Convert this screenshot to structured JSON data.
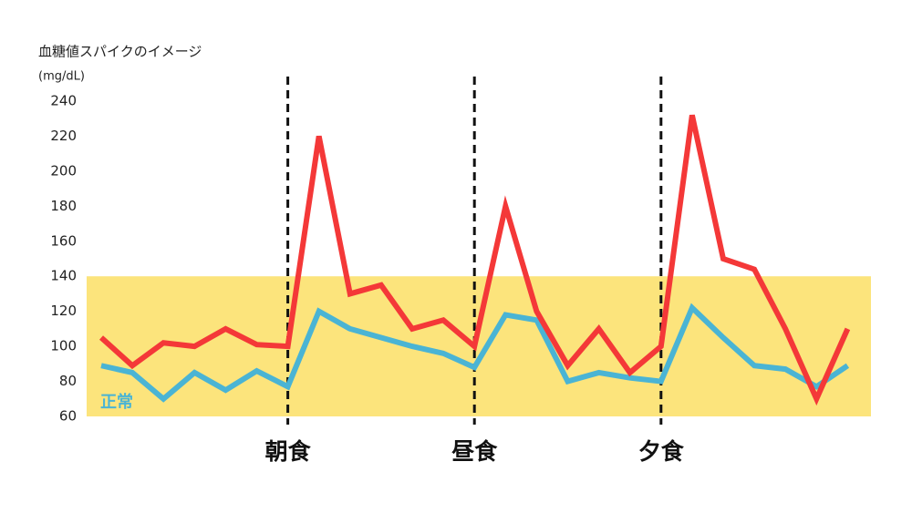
{
  "chart_data": {
    "type": "line",
    "title": "血糖値スパイクのイメージ",
    "y_label": "(mg/dL)",
    "categories": [
      null,
      null,
      null,
      null,
      null,
      null,
      "朝食",
      null,
      null,
      null,
      null,
      null,
      "昼食",
      null,
      null,
      null,
      null,
      null,
      "夕食",
      null,
      null,
      null,
      null,
      null,
      null
    ],
    "series": [
      {
        "color": "#f43838",
        "values": [
          105,
          89,
          102,
          100,
          110,
          101,
          100,
          220,
          130,
          135,
          110,
          115,
          100,
          180,
          120,
          89,
          110,
          85,
          100,
          232,
          150,
          144,
          110,
          70,
          110
        ]
      },
      {
        "color": "#4ab4d4",
        "values": [
          89,
          85,
          70,
          85,
          75,
          86,
          77,
          120,
          110,
          105,
          100,
          96,
          88,
          118,
          115,
          80,
          85,
          82,
          80,
          122,
          105,
          89,
          87,
          77,
          89
        ]
      }
    ],
    "normal_range": {
      "label": "正常",
      "range": [
        60,
        140
      ],
      "color": "#fce47c"
    },
    "ylim": [
      60,
      240
    ],
    "yticks": [
      60,
      80,
      100,
      120,
      140,
      160,
      180,
      200,
      220,
      240
    ]
  }
}
